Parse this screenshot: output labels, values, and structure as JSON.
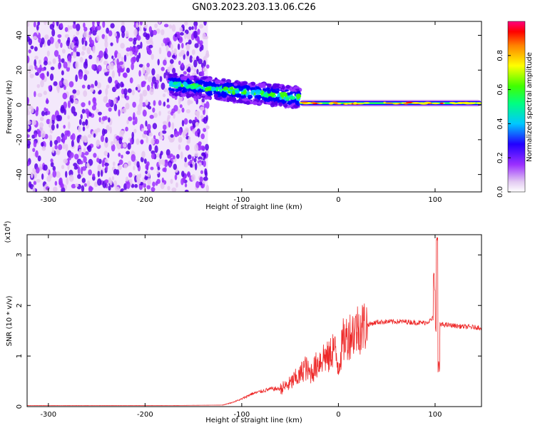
{
  "figure": {
    "title": "GN03.2023.203.13.06.C26"
  },
  "chart_data": [
    {
      "type": "heatmap",
      "title": "",
      "xlabel": "Height of straight line (km)",
      "ylabel": "Frequency (Hz)",
      "xlim": [
        -322,
        148
      ],
      "ylim": [
        -50,
        48
      ],
      "xticks": [
        -300,
        -200,
        -100,
        0,
        100
      ],
      "yticks": [
        -40,
        -20,
        0,
        20,
        40
      ],
      "colorbar": {
        "label": "Normalized spectral amplitude",
        "range": [
          0,
          1
        ],
        "ticks": [
          0.0,
          0.2,
          0.4,
          0.6,
          0.8
        ],
        "colormap": [
          "#ffffff",
          "#e4c8f0",
          "#9b30ff",
          "#5b00e8",
          "#0000ff",
          "#00c8ff",
          "#00ff80",
          "#40ff00",
          "#ffff00",
          "#ff8000",
          "#ff0000",
          "#ff0080"
        ]
      },
      "regions": [
        {
          "x": [
            -322,
            -135
          ],
          "description_value": 0.3
        },
        {
          "x": [
            -175,
            -40
          ],
          "freq_center_start": 12,
          "freq_center_end": 4,
          "amplitude": 0.45
        },
        {
          "x": [
            -40,
            148
          ],
          "freq_center": 1,
          "amplitude": 0.55
        }
      ]
    },
    {
      "type": "line",
      "title": "",
      "xlabel": "Height of straight line (km)",
      "ylabel": "SNR (10 * v/v)",
      "scale_label": "(x10^4)",
      "xlim": [
        -322,
        148
      ],
      "ylim": [
        0,
        3.4
      ],
      "xticks": [
        -300,
        -200,
        -100,
        0,
        100
      ],
      "yticks": [
        0,
        1,
        2,
        3
      ],
      "color": "#ee2b2b",
      "series": [
        {
          "x": [
            -322,
            -250,
            -180,
            -120,
            -110,
            -100,
            -90,
            -80,
            -70,
            -60,
            -50,
            -45,
            -40,
            -35,
            -30,
            -25,
            -20,
            -15,
            -10,
            -5,
            0,
            5,
            10,
            20,
            30,
            40,
            50,
            60,
            70,
            80,
            90,
            95,
            98,
            100,
            102,
            105,
            110,
            120,
            130,
            148
          ],
          "y": [
            0.02,
            0.02,
            0.02,
            0.03,
            0.08,
            0.15,
            0.25,
            0.3,
            0.35,
            0.35,
            0.45,
            0.55,
            0.6,
            0.8,
            0.65,
            0.75,
            0.9,
            1.0,
            0.95,
            1.2,
            0.8,
            1.3,
            1.4,
            1.55,
            1.62,
            1.67,
            1.68,
            1.68,
            1.68,
            1.66,
            1.66,
            1.7,
            1.75,
            1.6,
            1.3,
            1.62,
            1.62,
            1.6,
            1.58,
            1.56
          ]
        }
      ]
    }
  ]
}
